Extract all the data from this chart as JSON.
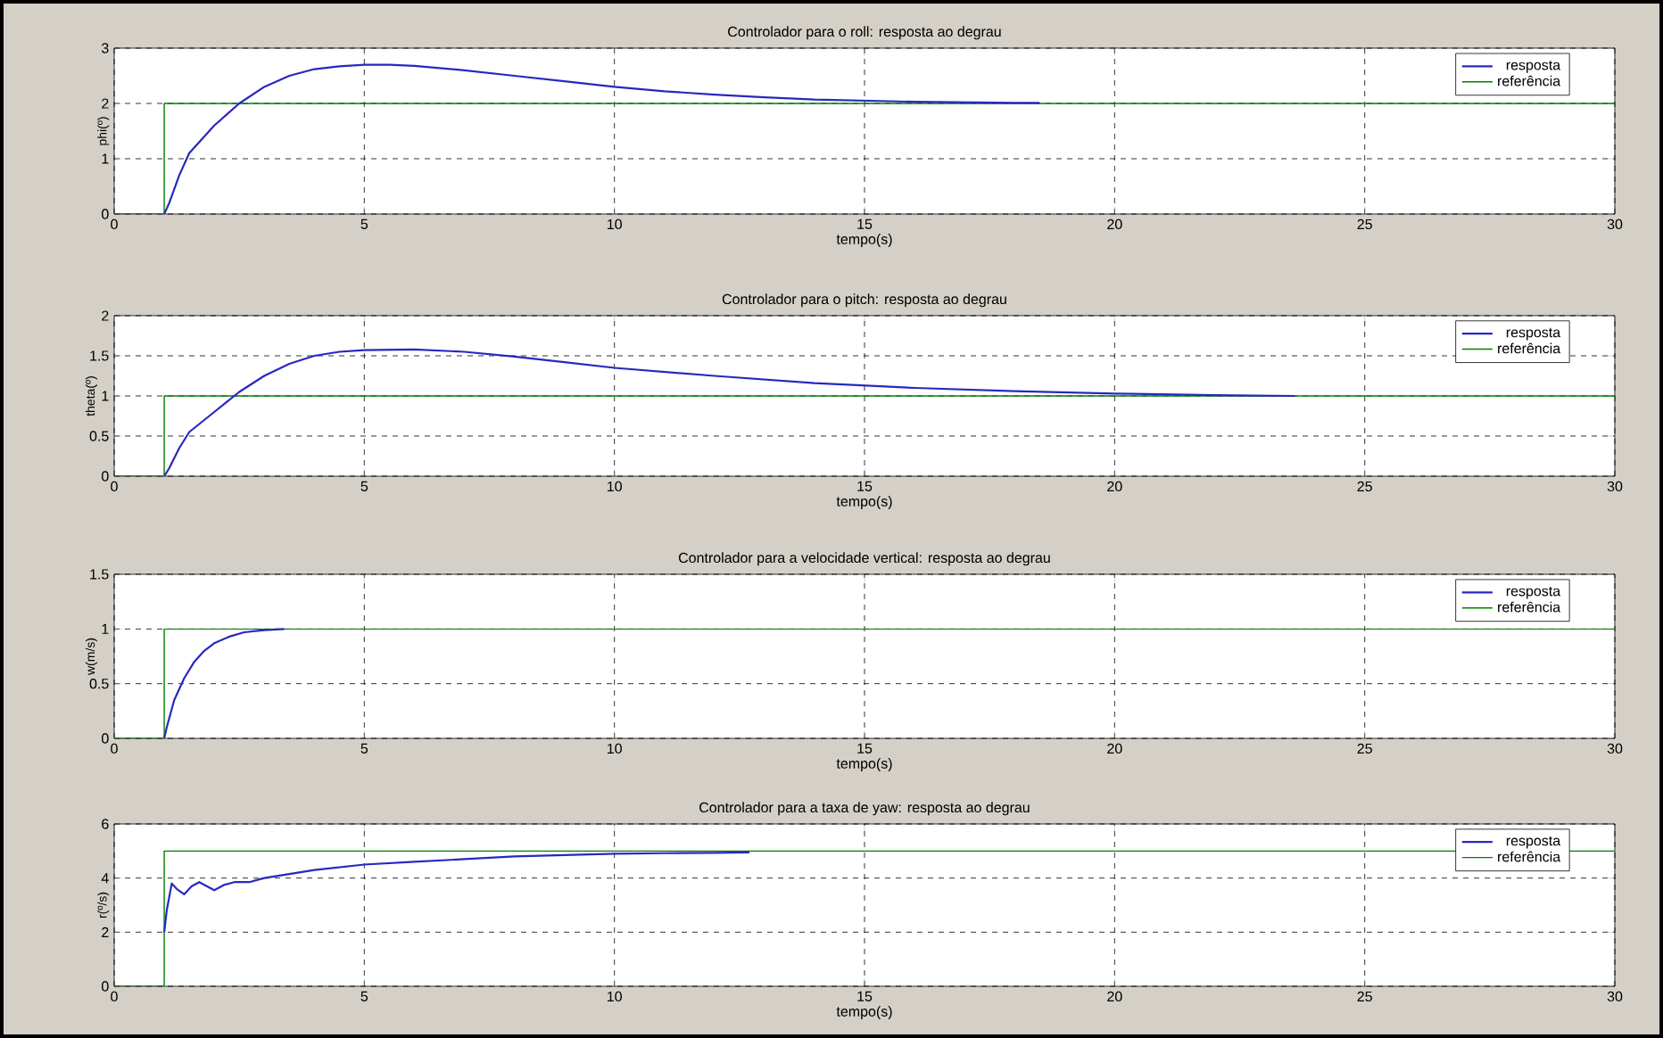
{
  "chart_data": [
    {
      "type": "line",
      "title": "Controlador para o roll: resposta ao degrau",
      "xlabel": "tempo(s)",
      "ylabel": "phi(º)",
      "xlim": [
        0,
        30
      ],
      "ylim": [
        0,
        3
      ],
      "xticks": [
        0,
        5,
        10,
        15,
        20,
        25,
        30
      ],
      "yticks": [
        0,
        1,
        2,
        3
      ],
      "grid": true,
      "legend": "top right",
      "series": [
        {
          "name": "resposta",
          "color": "#2828c0",
          "x": [
            1,
            1.1,
            1.3,
            1.5,
            2,
            2.5,
            3,
            3.5,
            4,
            4.5,
            5,
            5.5,
            6,
            7,
            8,
            9,
            10,
            11,
            12,
            13,
            14,
            15,
            16,
            17,
            18,
            18.5
          ],
          "values": [
            0,
            0.2,
            0.7,
            1.1,
            1.6,
            2.0,
            2.3,
            2.5,
            2.62,
            2.67,
            2.7,
            2.7,
            2.68,
            2.6,
            2.5,
            2.4,
            2.3,
            2.22,
            2.16,
            2.11,
            2.07,
            2.05,
            2.03,
            2.02,
            2.01,
            2.01
          ]
        },
        {
          "name": "referência",
          "color": "#008000",
          "x": [
            0,
            1,
            1,
            30
          ],
          "values": [
            0,
            0,
            2,
            2
          ]
        }
      ]
    },
    {
      "type": "line",
      "title": "Controlador para o pitch: resposta ao degrau",
      "xlabel": "tempo(s)",
      "ylabel": "theta(º)",
      "xlim": [
        0,
        30
      ],
      "ylim": [
        0,
        2
      ],
      "xticks": [
        0,
        5,
        10,
        15,
        20,
        25,
        30
      ],
      "yticks": [
        0,
        0.5,
        1,
        1.5,
        2
      ],
      "grid": true,
      "legend": "top right",
      "series": [
        {
          "name": "resposta",
          "color": "#2828c0",
          "x": [
            1,
            1.1,
            1.3,
            1.5,
            2,
            2.5,
            3,
            3.5,
            4,
            4.5,
            5,
            6,
            7,
            8,
            9,
            10,
            12,
            14,
            16,
            18,
            20,
            22,
            23.6
          ],
          "values": [
            0,
            0.1,
            0.35,
            0.55,
            0.8,
            1.05,
            1.25,
            1.4,
            1.5,
            1.55,
            1.57,
            1.58,
            1.55,
            1.49,
            1.42,
            1.35,
            1.25,
            1.16,
            1.1,
            1.06,
            1.03,
            1.01,
            1.0
          ]
        },
        {
          "name": "referência",
          "color": "#008000",
          "x": [
            0,
            1,
            1,
            30
          ],
          "values": [
            0,
            0,
            1,
            1
          ]
        }
      ]
    },
    {
      "type": "line",
      "title": "Controlador para a velocidade vertical: resposta ao degrau",
      "xlabel": "tempo(s)",
      "ylabel": "w(m/s)",
      "xlim": [
        0,
        30
      ],
      "ylim": [
        0,
        1.5
      ],
      "xticks": [
        0,
        5,
        10,
        15,
        20,
        25,
        30
      ],
      "yticks": [
        0,
        0.5,
        1,
        1.5
      ],
      "grid": true,
      "legend": "top right",
      "series": [
        {
          "name": "resposta",
          "color": "#2828c0",
          "x": [
            1,
            1.05,
            1.2,
            1.4,
            1.6,
            1.8,
            2,
            2.3,
            2.6,
            3,
            3.4
          ],
          "values": [
            0,
            0.1,
            0.35,
            0.55,
            0.7,
            0.8,
            0.87,
            0.93,
            0.97,
            0.99,
            1.0
          ]
        },
        {
          "name": "referência",
          "color": "#008000",
          "x": [
            0,
            1,
            1,
            30
          ],
          "values": [
            0,
            0,
            1,
            1
          ]
        }
      ]
    },
    {
      "type": "line",
      "title": "Controlador para a taxa de yaw: resposta ao degrau",
      "xlabel": "tempo(s)",
      "ylabel": "r(º/s)",
      "xlim": [
        0,
        30
      ],
      "ylim": [
        0,
        6
      ],
      "xticks": [
        0,
        5,
        10,
        15,
        20,
        25,
        30
      ],
      "yticks": [
        0,
        2,
        4,
        6
      ],
      "grid": true,
      "legend": "top right",
      "series": [
        {
          "name": "resposta",
          "color": "#2828c0",
          "x": [
            1,
            1.05,
            1.15,
            1.25,
            1.4,
            1.55,
            1.7,
            1.85,
            2,
            2.2,
            2.4,
            2.7,
            3,
            4,
            5,
            6,
            7,
            8,
            9,
            10,
            11,
            12,
            12.7
          ],
          "values": [
            2,
            2.8,
            3.8,
            3.6,
            3.4,
            3.7,
            3.85,
            3.7,
            3.55,
            3.75,
            3.85,
            3.85,
            4.0,
            4.3,
            4.5,
            4.6,
            4.7,
            4.8,
            4.85,
            4.9,
            4.92,
            4.93,
            4.95
          ]
        },
        {
          "name": "referência",
          "color": "#008000",
          "x": [
            0,
            1,
            1,
            30
          ],
          "values": [
            0,
            0,
            5,
            5
          ]
        }
      ]
    }
  ]
}
